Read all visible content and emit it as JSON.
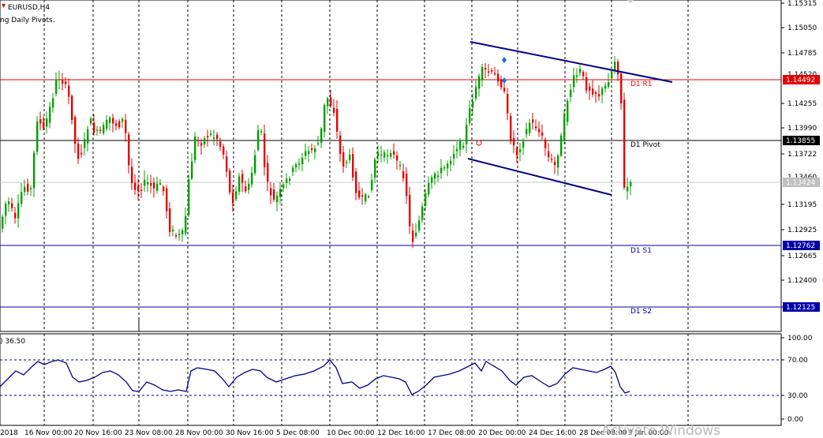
{
  "header": {
    "symbol": "EURUSD,H4",
    "indicator": "ng Daily Pivots."
  },
  "subwindow": {
    "title": ") 36.50",
    "scale_labels": [
      "100.00",
      "70.00",
      "30.00",
      "0.00"
    ]
  },
  "price_axis": {
    "labels": [
      "1.15315",
      "1.15050",
      "1.14785",
      "1.14255",
      "1.13990",
      "1.13722",
      "1.13195",
      "1.12925",
      "1.12665",
      "1.12400",
      "1.12125"
    ],
    "partial_labels": [
      "1.14520",
      "1.13460"
    ]
  },
  "pivot_lines": [
    {
      "name": "D1 R1",
      "value": "1.14492",
      "color": "#e60000",
      "text_color": "#ff0000"
    },
    {
      "name": "D1 Pivot",
      "value": "1.13855",
      "color": "#000000",
      "text_color": "#000000"
    },
    {
      "name": "D1 S1",
      "value": "1.12762",
      "color": "#0000aa",
      "text_color": "#0000aa"
    },
    {
      "name": "D1 S2",
      "value": "1.12125",
      "color": "#0000aa",
      "text_color": "#0000aa"
    }
  ],
  "current_price": "1.13424",
  "time_axis": [
    "2018",
    "16 Nov 00:00",
    "20 Nov 16:00",
    "23 Nov 08:00",
    "28 Nov 00:00",
    "30 Nov 16:00",
    "5 Dec 08:00",
    "10 Dec 00:00",
    "12 Dec 16:00",
    "17 Dec 08:00",
    "20 Dec 00:00",
    "24 Dec 16:00",
    "28 Dec 08:00",
    "3 Jan 00:00"
  ],
  "watermark": "Activate Windows",
  "colors": {
    "bull": "#00a000",
    "bear": "#e60000",
    "trendline": "#00008b",
    "grid": "#000000",
    "rsi_line": "#00008b"
  }
}
